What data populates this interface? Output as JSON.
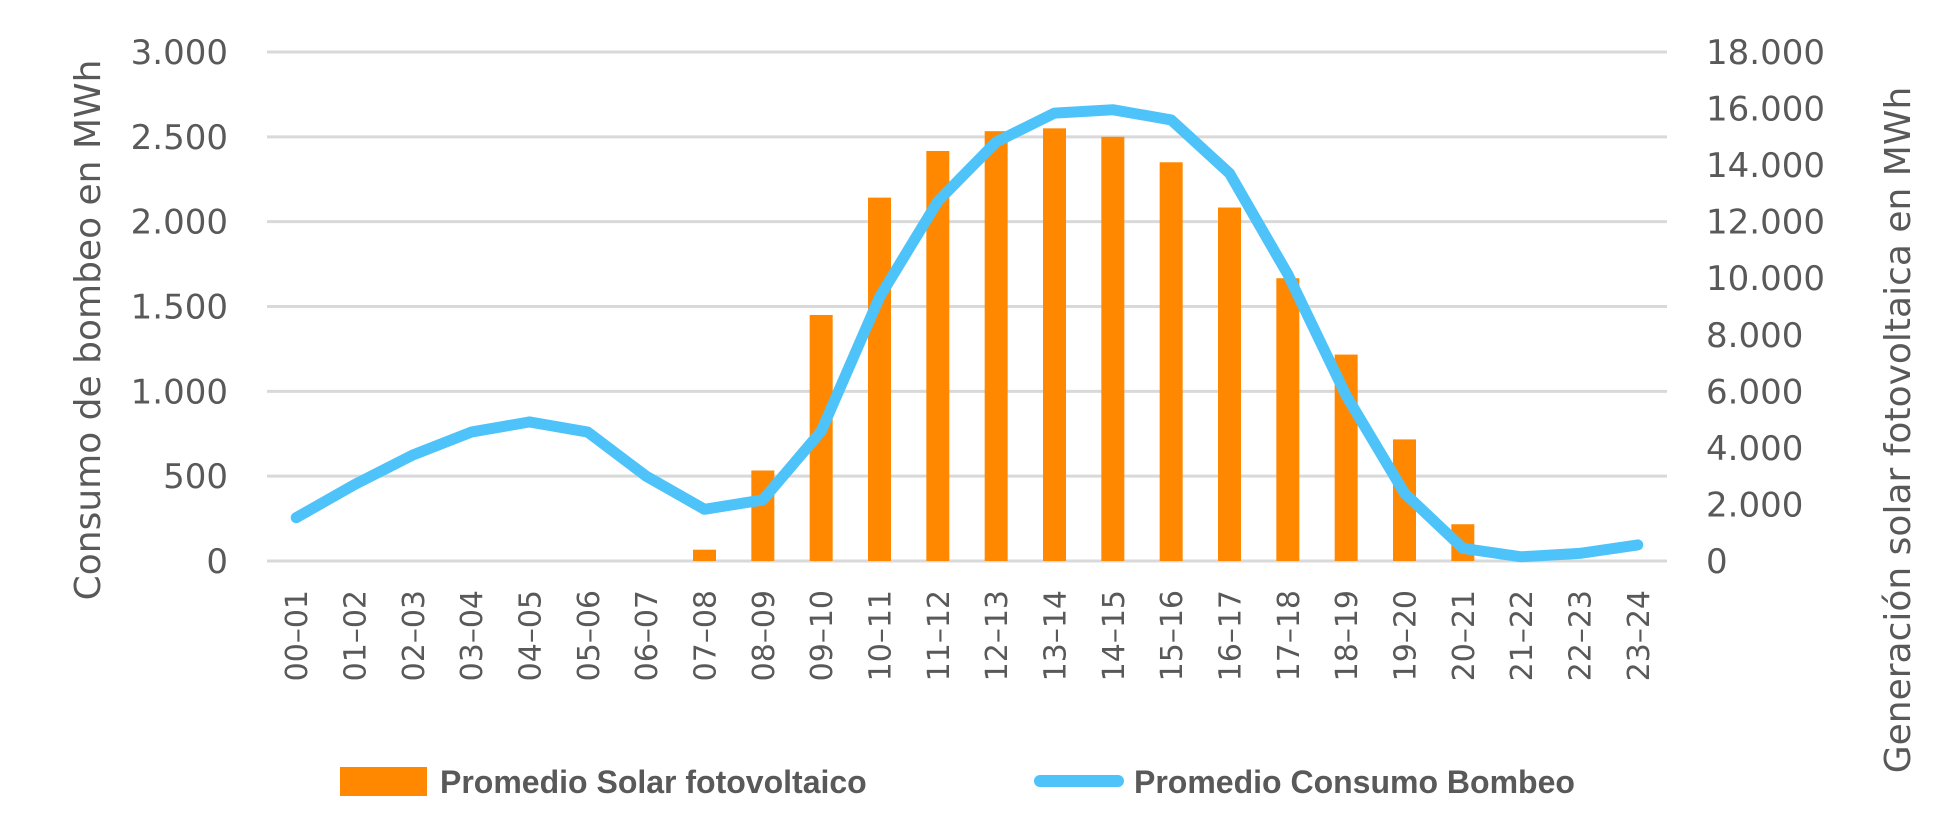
{
  "chart_data": {
    "type": "bar",
    "title": "",
    "categories": [
      "00-01",
      "01-02",
      "02-03",
      "03-04",
      "04-05",
      "05-06",
      "06-07",
      "07-08",
      "08-09",
      "09-10",
      "10-11",
      "11-12",
      "12-13",
      "13-14",
      "14-15",
      "15-16",
      "16-17",
      "17-18",
      "18-19",
      "19-20",
      "20-21",
      "21-22",
      "22-23",
      "23-24"
    ],
    "series": [
      {
        "name": "Promedio Solar fotovoltaico",
        "type": "bar",
        "axis": "right",
        "color": "#ff8800",
        "values": [
          0,
          0,
          0,
          0,
          0,
          0,
          0,
          400,
          3200,
          8700,
          12850,
          14500,
          15200,
          15300,
          15000,
          14100,
          12500,
          10000,
          7300,
          4300,
          1300,
          0,
          0,
          0
        ]
      },
      {
        "name": "Promedio Consumo Bombeo",
        "type": "line",
        "axis": "left",
        "color": "#4dc3fa",
        "values": [
          255,
          450,
          625,
          760,
          820,
          760,
          500,
          305,
          360,
          765,
          1555,
          2120,
          2470,
          2640,
          2660,
          2600,
          2285,
          1690,
          975,
          400,
          75,
          25,
          45,
          95
        ]
      }
    ],
    "ylabel": "Consumo de bombeo en MWh",
    "ylim": [
      0,
      3000
    ],
    "yticks": [
      "0",
      "500",
      "1.000",
      "1.500",
      "2.000",
      "2.500",
      "3.000"
    ],
    "y2label": "Generación solar fotovoltaica en MWh",
    "y2lim": [
      0,
      18000
    ],
    "y2ticks": [
      "0",
      "2.000",
      "4.000",
      "6.000",
      "8.000",
      "10.000",
      "12.000",
      "14.000",
      "16.000",
      "18.000"
    ],
    "xlabel": "",
    "grid": true,
    "legend_position": "bottom"
  }
}
